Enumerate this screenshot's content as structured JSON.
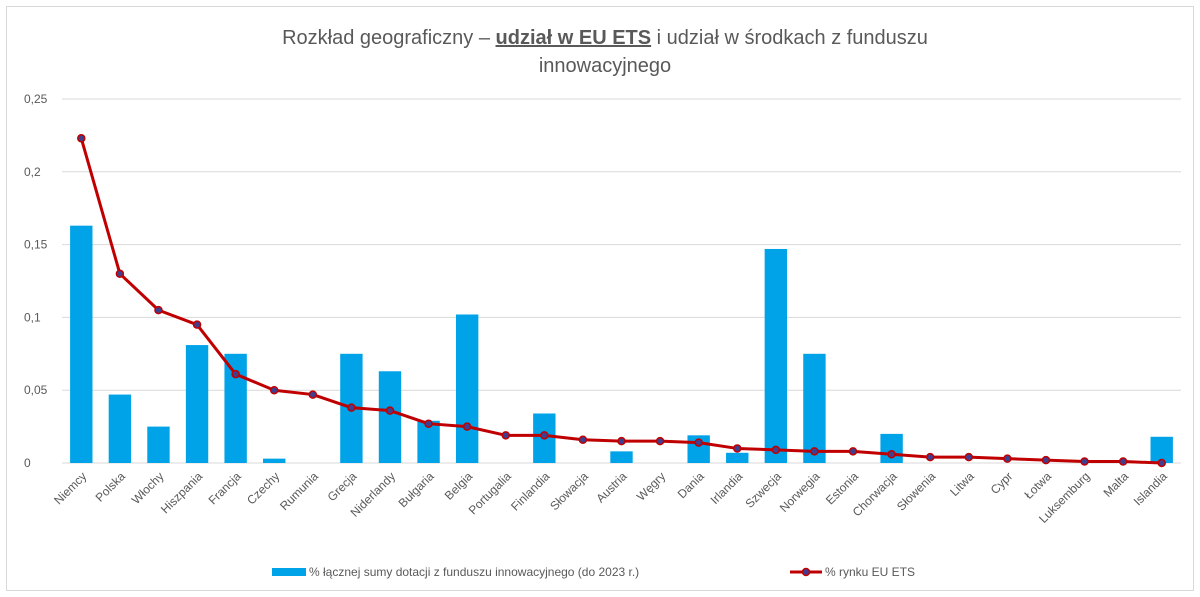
{
  "chart_data": {
    "type": "bar_line",
    "title": [
      "Rozkład geograficzny – ",
      "udział w EU ETS",
      " i udział w środkach z funduszu",
      "innowacyjnego"
    ],
    "categories": [
      "Niemcy",
      "Polska",
      "Włochy",
      "Hiszpania",
      "Francja",
      "Czechy",
      "Rumunia",
      "Grecja",
      "Niderlandy",
      "Bułgaria",
      "Belgia",
      "Portugalia",
      "Finlandia",
      "Słowacja",
      "Austria",
      "Węgry",
      "Dania",
      "Irlandia",
      "Szwecja",
      "Norwegia",
      "Estonia",
      "Chorwacja",
      "Słowenia",
      "Litwa",
      "Cypr",
      "Łotwa",
      "Luksemburg",
      "Malta",
      "Islandia"
    ],
    "series": [
      {
        "name": "% łącznej sumy dotacji z funduszu innowacyjnego (do 2023 r.)",
        "type": "bar",
        "color": "#00a2e8",
        "values": [
          0.163,
          0.047,
          0.025,
          0.081,
          0.075,
          0.003,
          0,
          0.075,
          0.063,
          0.029,
          0.102,
          0,
          0.034,
          0,
          0.008,
          0,
          0.019,
          0.007,
          0.147,
          0.075,
          0,
          0.02,
          0,
          0,
          0,
          0,
          0,
          0,
          0.018
        ]
      },
      {
        "name": "% rynku EU ETS",
        "type": "line",
        "color": "#c00000",
        "marker_color": "#3f3f8f",
        "values": [
          0.223,
          0.13,
          0.105,
          0.095,
          0.061,
          0.05,
          0.047,
          0.038,
          0.036,
          0.027,
          0.025,
          0.019,
          0.019,
          0.016,
          0.015,
          0.015,
          0.014,
          0.01,
          0.009,
          0.008,
          0.008,
          0.006,
          0.004,
          0.004,
          0.003,
          0.002,
          0.001,
          0.001,
          0
        ]
      }
    ],
    "ylim": [
      0,
      0.25
    ],
    "yticks": [
      0,
      {
        "value": 0.05,
        "label": "0,05"
      },
      {
        "value": 0.1,
        "label": "0,1"
      },
      {
        "value": 0.15,
        "label": "0,15"
      },
      {
        "value": 0.2,
        "label": "0,2"
      },
      {
        "value": 0.25,
        "label": "0,25"
      }
    ],
    "grid": true,
    "legend": "bottom"
  }
}
